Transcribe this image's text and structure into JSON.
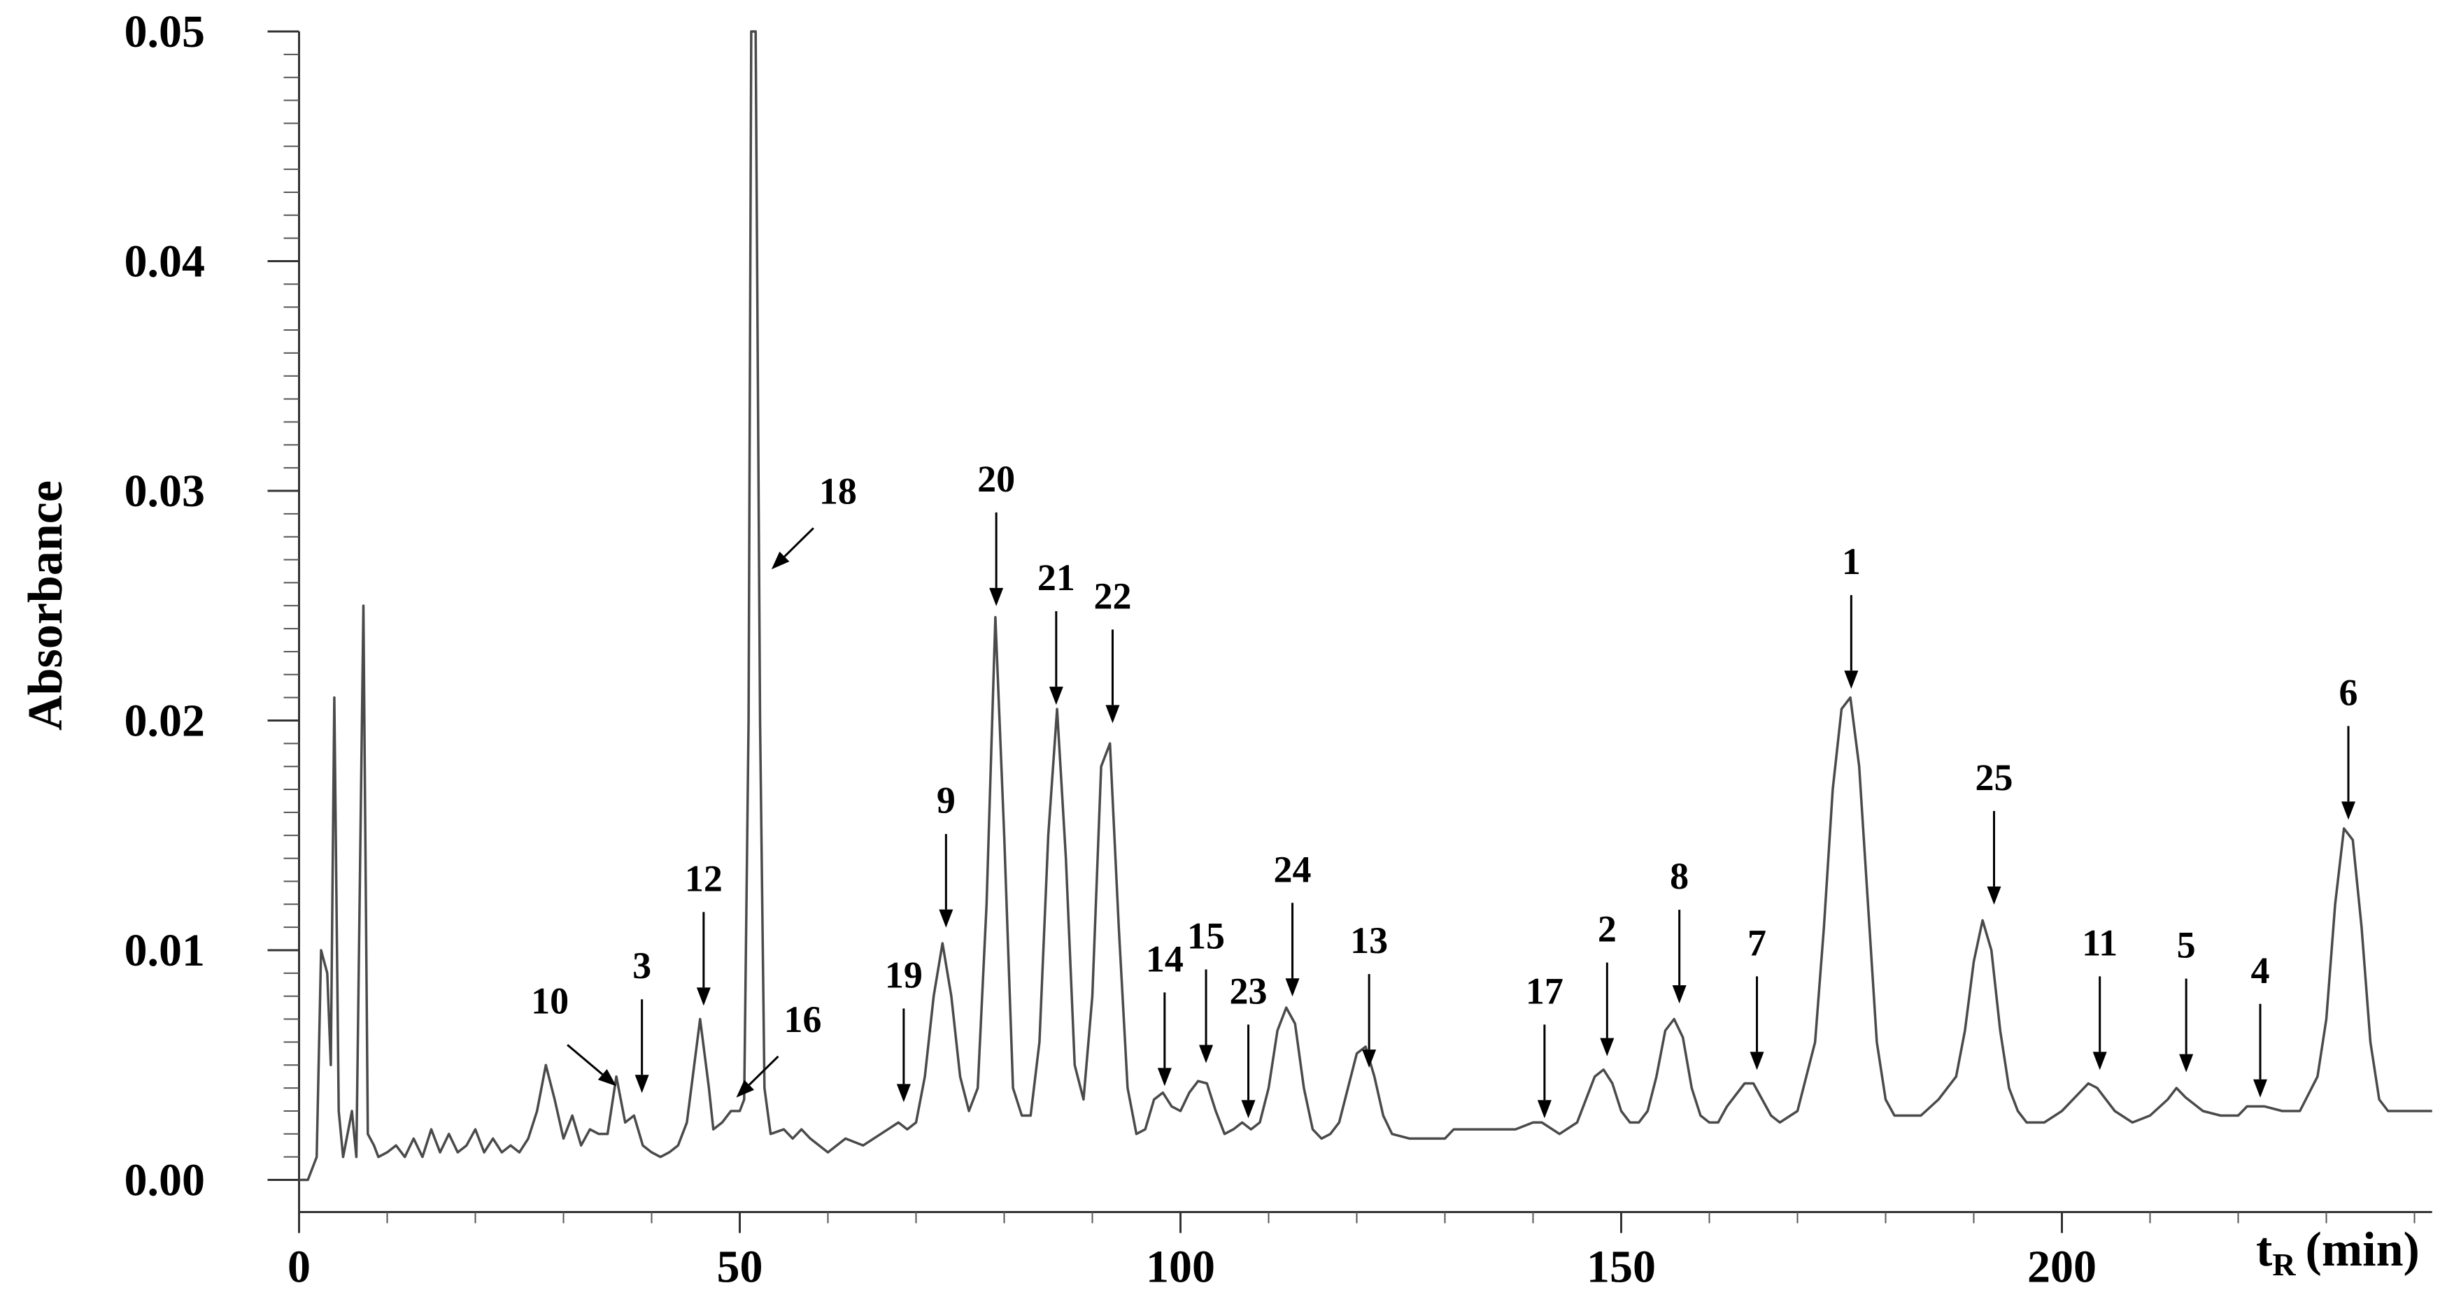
{
  "chart_data": {
    "type": "line",
    "y_label": "Absorbance",
    "x_label": {
      "symbol": "t",
      "subscript": "R",
      "unit": "(min)"
    },
    "color": "#4a4a4a",
    "xlim": [
      0,
      242
    ],
    "ylim": [
      -0.0014,
      0.05
    ],
    "xticks": [
      0,
      50,
      100,
      150,
      200
    ],
    "xminorticks": [
      10,
      20,
      30,
      40,
      60,
      70,
      80,
      90,
      110,
      120,
      130,
      140,
      160,
      170,
      180,
      190,
      210,
      220,
      230,
      240
    ],
    "yticks": [
      {
        "value": 0,
        "label": "0.00"
      },
      {
        "value": 0.01,
        "label": "0.01"
      },
      {
        "value": 0.02,
        "label": "0.02"
      },
      {
        "value": 0.03,
        "label": "0.03"
      },
      {
        "value": 0.04,
        "label": "0.04"
      },
      {
        "value": 0.05,
        "label": "0.05"
      }
    ],
    "yminorticks": [
      0.001,
      0.002,
      0.003,
      0.004,
      0.005,
      0.006,
      0.007,
      0.008,
      0.009,
      0.011,
      0.012,
      0.013,
      0.014,
      0.015,
      0.016,
      0.017,
      0.018,
      0.019,
      0.021,
      0.022,
      0.023,
      0.024,
      0.025,
      0.026,
      0.027,
      0.028,
      0.029,
      0.031,
      0.032,
      0.033,
      0.034,
      0.035,
      0.036,
      0.037,
      0.038,
      0.039,
      0.041,
      0.042,
      0.043,
      0.044,
      0.045,
      0.046,
      0.047,
      0.048,
      0.049
    ],
    "x": [
      0,
      1,
      2,
      2.5,
      3.2,
      3.6,
      4,
      4.5,
      5,
      6,
      6.5,
      7.3,
      7.8,
      8.5,
      9,
      10,
      11,
      12,
      13,
      14,
      15,
      16,
      17,
      18,
      19,
      20,
      21,
      22,
      23,
      24,
      25,
      26,
      27,
      28,
      29,
      30,
      31,
      32,
      33,
      34,
      35,
      36,
      37,
      38,
      39,
      40,
      41,
      42,
      43,
      44,
      45,
      45.5,
      46.5,
      47,
      48,
      49,
      50,
      50.5,
      51,
      51.3,
      51.8,
      52.3,
      52.8,
      53.5,
      55,
      56,
      57,
      58,
      60,
      62,
      64,
      66,
      68,
      69,
      70,
      71,
      72,
      73,
      74,
      75,
      76,
      77,
      78,
      79,
      80,
      81,
      82,
      83,
      84,
      85,
      86,
      87,
      88,
      89,
      90,
      91,
      92,
      93,
      94,
      95,
      96,
      97,
      98,
      99,
      100,
      101,
      102,
      103,
      104,
      105,
      106,
      107,
      108,
      109,
      110,
      111,
      112,
      113,
      114,
      115,
      116,
      117,
      118,
      119,
      120,
      121,
      122,
      123,
      124,
      126,
      128,
      130,
      131,
      135,
      138,
      140,
      141,
      143,
      145,
      146,
      147,
      148,
      149,
      150,
      151,
      152,
      153,
      154,
      155,
      156,
      157,
      158,
      159,
      160,
      161,
      162,
      164,
      165,
      166,
      167,
      168,
      170,
      172,
      173,
      174,
      175,
      176,
      177,
      178,
      179,
      180,
      181,
      182,
      184,
      186,
      188,
      189,
      190,
      191,
      192,
      193,
      194,
      195,
      196,
      198,
      200,
      202,
      203,
      204,
      206,
      208,
      210,
      212,
      213,
      214,
      216,
      218,
      220,
      221,
      223,
      225,
      227,
      229,
      230,
      231,
      232,
      233,
      234,
      235,
      236,
      237,
      240,
      242
    ],
    "values": [
      0,
      0,
      0.001,
      0.01,
      0.009,
      0.005,
      0.021,
      0.003,
      0.001,
      0.003,
      0.001,
      0.025,
      0.002,
      0.0015,
      0.001,
      0.0012,
      0.0015,
      0.001,
      0.0018,
      0.001,
      0.0022,
      0.0012,
      0.002,
      0.0012,
      0.0015,
      0.0022,
      0.0012,
      0.0018,
      0.0012,
      0.0015,
      0.0012,
      0.0018,
      0.003,
      0.005,
      0.0035,
      0.0018,
      0.0028,
      0.0015,
      0.0022,
      0.002,
      0.002,
      0.0045,
      0.0025,
      0.0028,
      0.0015,
      0.0012,
      0.001,
      0.0012,
      0.0015,
      0.0025,
      0.0055,
      0.007,
      0.004,
      0.0022,
      0.0025,
      0.003,
      0.003,
      0.0035,
      0.02,
      0.05,
      0.05,
      0.02,
      0.004,
      0.002,
      0.0022,
      0.0018,
      0.0022,
      0.0018,
      0.0012,
      0.0018,
      0.0015,
      0.002,
      0.0025,
      0.0022,
      0.0025,
      0.0045,
      0.008,
      0.0103,
      0.008,
      0.0045,
      0.003,
      0.004,
      0.012,
      0.0245,
      0.015,
      0.004,
      0.0028,
      0.0028,
      0.006,
      0.015,
      0.0205,
      0.014,
      0.005,
      0.0035,
      0.008,
      0.018,
      0.019,
      0.011,
      0.004,
      0.002,
      0.0022,
      0.0035,
      0.0038,
      0.0032,
      0.003,
      0.0038,
      0.0043,
      0.0042,
      0.003,
      0.002,
      0.0022,
      0.0025,
      0.0022,
      0.0025,
      0.004,
      0.0065,
      0.0075,
      0.0068,
      0.004,
      0.0022,
      0.0018,
      0.002,
      0.0025,
      0.004,
      0.0055,
      0.0058,
      0.0045,
      0.0028,
      0.002,
      0.0018,
      0.0018,
      0.0018,
      0.0022,
      0.0022,
      0.0022,
      0.0025,
      0.0025,
      0.002,
      0.0025,
      0.0035,
      0.0045,
      0.0048,
      0.0042,
      0.003,
      0.0025,
      0.0025,
      0.003,
      0.0045,
      0.0065,
      0.007,
      0.0062,
      0.004,
      0.0028,
      0.0025,
      0.0025,
      0.0032,
      0.0042,
      0.0042,
      0.0035,
      0.0028,
      0.0025,
      0.003,
      0.006,
      0.011,
      0.017,
      0.0205,
      0.021,
      0.018,
      0.012,
      0.006,
      0.0035,
      0.0028,
      0.0028,
      0.0028,
      0.0035,
      0.0045,
      0.0065,
      0.0095,
      0.0113,
      0.01,
      0.0065,
      0.004,
      0.003,
      0.0025,
      0.0025,
      0.003,
      0.0038,
      0.0042,
      0.004,
      0.003,
      0.0025,
      0.0028,
      0.0035,
      0.004,
      0.0036,
      0.003,
      0.0028,
      0.0028,
      0.0032,
      0.0032,
      0.003,
      0.003,
      0.0045,
      0.007,
      0.012,
      0.0153,
      0.0148,
      0.011,
      0.006,
      0.0035,
      0.003,
      0.003,
      0.003
    ],
    "annotations": [
      {
        "text": "10",
        "x": 36,
        "y": 0.0039,
        "arrow": "down-right"
      },
      {
        "text": "3",
        "x": 38.9,
        "y": 0.0036,
        "arrow": "down"
      },
      {
        "text": "12",
        "x": 45.9,
        "y": 0.0074,
        "arrow": "down"
      },
      {
        "text": "16",
        "x": 49.6,
        "y": 0.0034,
        "arrow": "down-left"
      },
      {
        "text": "18",
        "x": 53.6,
        "y": 0.0264,
        "arrow": "down-left"
      },
      {
        "text": "19",
        "x": 68.6,
        "y": 0.0032,
        "arrow": "down"
      },
      {
        "text": "9",
        "x": 73.4,
        "y": 0.0108,
        "arrow": "down"
      },
      {
        "text": "20",
        "x": 79.1,
        "y": 0.0248,
        "arrow": "down"
      },
      {
        "text": "21",
        "x": 85.9,
        "y": 0.0205,
        "arrow": "down"
      },
      {
        "text": "22",
        "x": 92.3,
        "y": 0.0197,
        "arrow": "down"
      },
      {
        "text": "14",
        "x": 98.2,
        "y": 0.0039,
        "arrow": "down"
      },
      {
        "text": "15",
        "x": 102.9,
        "y": 0.0049,
        "arrow": "down"
      },
      {
        "text": "23",
        "x": 107.7,
        "y": 0.0025,
        "arrow": "down"
      },
      {
        "text": "24",
        "x": 112.7,
        "y": 0.0078,
        "arrow": "down"
      },
      {
        "text": "13",
        "x": 121.4,
        "y": 0.0047,
        "arrow": "down"
      },
      {
        "text": "17",
        "x": 141.3,
        "y": 0.0025,
        "arrow": "down"
      },
      {
        "text": "2",
        "x": 148.4,
        "y": 0.0052,
        "arrow": "down"
      },
      {
        "text": "8",
        "x": 156.6,
        "y": 0.0075,
        "arrow": "down"
      },
      {
        "text": "7",
        "x": 165.4,
        "y": 0.0046,
        "arrow": "down"
      },
      {
        "text": "1",
        "x": 176.1,
        "y": 0.0212,
        "arrow": "down"
      },
      {
        "text": "25",
        "x": 192.3,
        "y": 0.0118,
        "arrow": "down"
      },
      {
        "text": "11",
        "x": 204.3,
        "y": 0.0046,
        "arrow": "down"
      },
      {
        "text": "5",
        "x": 214.1,
        "y": 0.0045,
        "arrow": "down"
      },
      {
        "text": "4",
        "x": 222.5,
        "y": 0.0034,
        "arrow": "down"
      },
      {
        "text": "6",
        "x": 232.5,
        "y": 0.0155,
        "arrow": "down"
      }
    ]
  }
}
